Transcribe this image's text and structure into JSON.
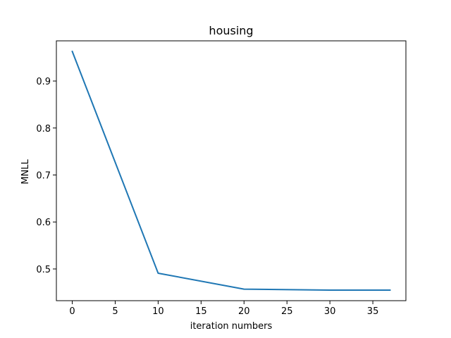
{
  "chart_data": {
    "type": "line",
    "title": "housing",
    "xlabel": "iteration numbers",
    "ylabel": "MNLL",
    "xlim": [
      -1.85,
      38.85
    ],
    "ylim": [
      0.4325,
      0.9855
    ],
    "xticks": [
      0,
      5,
      10,
      15,
      20,
      25,
      30,
      35
    ],
    "yticks": [
      0.5,
      0.6,
      0.7,
      0.8,
      0.9
    ],
    "grid": false,
    "series": [
      {
        "color": "#1f77b4",
        "x": [
          0,
          10,
          20,
          30,
          37
        ],
        "y": [
          0.963,
          0.491,
          0.457,
          0.455,
          0.455
        ]
      }
    ]
  }
}
